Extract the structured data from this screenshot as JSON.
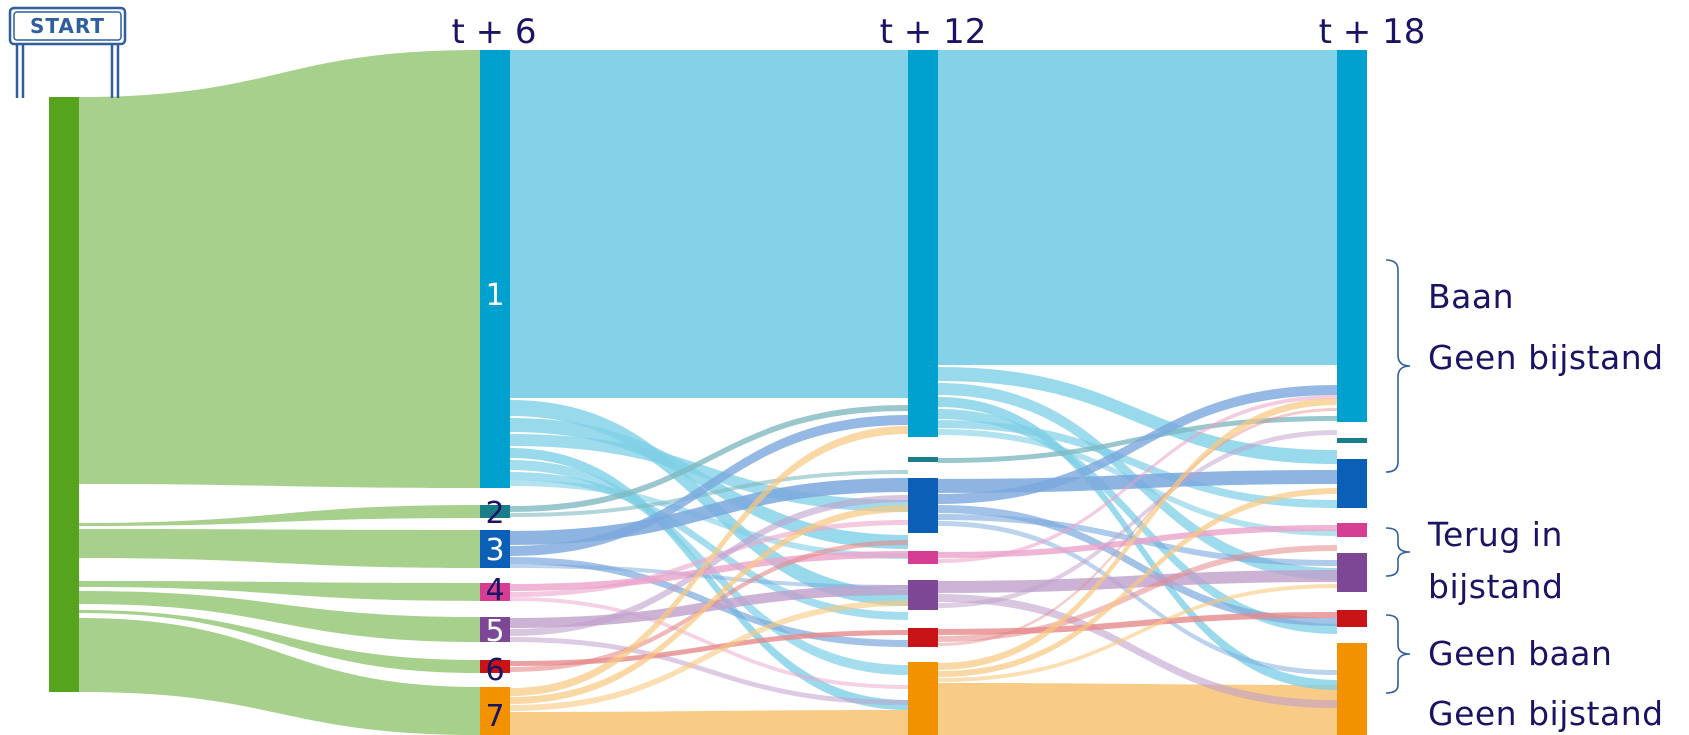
{
  "start_sign": "START",
  "columns": [
    "t + 6",
    "t + 12",
    "t + 18"
  ],
  "states": [
    {
      "label": "1",
      "color": "#00a0cf",
      "light": "#7ecfe6"
    },
    {
      "label": "2",
      "color": "#1a7e8a",
      "light": "#7fb9c1"
    },
    {
      "label": "3",
      "color": "#0b5fb6",
      "light": "#7aa8dd"
    },
    {
      "label": "4",
      "color": "#d63e93",
      "light": "#eba3cb"
    },
    {
      "label": "5",
      "color": "#7e4796",
      "light": "#bfa0cc"
    },
    {
      "label": "6",
      "color": "#c81417",
      "light": "#e6898b"
    },
    {
      "label": "7",
      "color": "#f29200",
      "light": "#f8c87f"
    }
  ],
  "start_node": {
    "color": "#56a31d",
    "light": "#a7d08c"
  },
  "groups": [
    {
      "lines": [
        "Baan",
        "Geen bijstand"
      ]
    },
    {
      "lines": [
        "Terug in",
        "bijstand"
      ]
    },
    {
      "lines": [
        "Geen baan",
        "Geen bijstand"
      ]
    }
  ]
}
